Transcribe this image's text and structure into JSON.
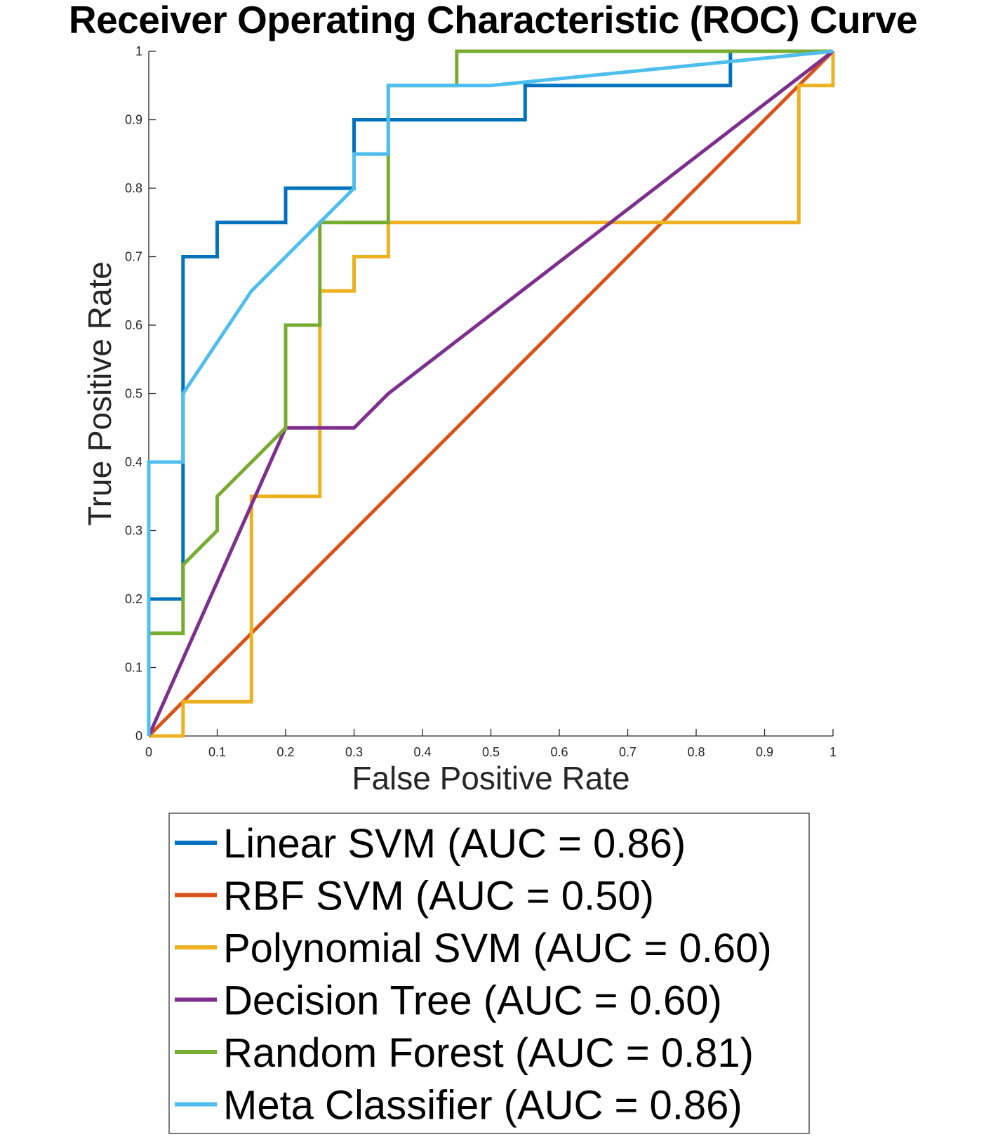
{
  "chart_data": {
    "type": "line",
    "title": "Receiver Operating Characteristic (ROC) Curve",
    "xlabel": "False Positive Rate",
    "ylabel": "True Positive Rate",
    "xlim": [
      0,
      1
    ],
    "ylim": [
      0,
      1
    ],
    "x_ticks": [
      "0",
      "0.1",
      "0.2",
      "0.3",
      "0.4",
      "0.5",
      "0.6",
      "0.7",
      "0.8",
      "0.9",
      "1"
    ],
    "y_ticks": [
      "0",
      "0.1",
      "0.2",
      "0.3",
      "0.4",
      "0.5",
      "0.6",
      "0.7",
      "0.8",
      "0.9",
      "1"
    ],
    "grid": false,
    "legend_position": "below",
    "series": [
      {
        "name": "Linear SVM (AUC = 0.86)",
        "color": "#0072BD",
        "points": [
          [
            0,
            0
          ],
          [
            0,
            0.2
          ],
          [
            0.05,
            0.2
          ],
          [
            0.05,
            0.7
          ],
          [
            0.1,
            0.7
          ],
          [
            0.1,
            0.75
          ],
          [
            0.2,
            0.75
          ],
          [
            0.2,
            0.8
          ],
          [
            0.3,
            0.8
          ],
          [
            0.3,
            0.9
          ],
          [
            0.55,
            0.9
          ],
          [
            0.55,
            0.95
          ],
          [
            0.85,
            0.95
          ],
          [
            0.85,
            1
          ],
          [
            1,
            1
          ]
        ]
      },
      {
        "name": "RBF SVM (AUC = 0.50)",
        "color": "#D95319",
        "points": [
          [
            0,
            0
          ],
          [
            1,
            1
          ]
        ]
      },
      {
        "name": "Polynomial SVM (AUC = 0.60)",
        "color": "#EDB120",
        "points": [
          [
            0,
            0
          ],
          [
            0.05,
            0
          ],
          [
            0.05,
            0.05
          ],
          [
            0.15,
            0.05
          ],
          [
            0.15,
            0.35
          ],
          [
            0.25,
            0.35
          ],
          [
            0.25,
            0.65
          ],
          [
            0.3,
            0.65
          ],
          [
            0.3,
            0.7
          ],
          [
            0.35,
            0.7
          ],
          [
            0.35,
            0.75
          ],
          [
            0.95,
            0.75
          ],
          [
            0.95,
            0.95
          ],
          [
            1,
            0.95
          ],
          [
            1,
            1
          ]
        ]
      },
      {
        "name": "Decision Tree (AUC = 0.60)",
        "color": "#7E2F8E",
        "points": [
          [
            0,
            0
          ],
          [
            0.2,
            0.45
          ],
          [
            0.3,
            0.45
          ],
          [
            0.35,
            0.5
          ],
          [
            1,
            1
          ]
        ]
      },
      {
        "name": "Random Forest (AUC = 0.81)",
        "color": "#77AC30",
        "points": [
          [
            0,
            0
          ],
          [
            0,
            0.15
          ],
          [
            0.05,
            0.15
          ],
          [
            0.05,
            0.25
          ],
          [
            0.1,
            0.3
          ],
          [
            0.1,
            0.35
          ],
          [
            0.2,
            0.45
          ],
          [
            0.2,
            0.6
          ],
          [
            0.25,
            0.6
          ],
          [
            0.25,
            0.75
          ],
          [
            0.35,
            0.75
          ],
          [
            0.35,
            0.95
          ],
          [
            0.45,
            0.95
          ],
          [
            0.45,
            1
          ],
          [
            1,
            1
          ]
        ]
      },
      {
        "name": "Meta Classifier (AUC = 0.86)",
        "color": "#4DBEEE",
        "points": [
          [
            0,
            0
          ],
          [
            0,
            0.4
          ],
          [
            0.05,
            0.4
          ],
          [
            0.05,
            0.5
          ],
          [
            0.15,
            0.65
          ],
          [
            0.25,
            0.75
          ],
          [
            0.3,
            0.8
          ],
          [
            0.3,
            0.85
          ],
          [
            0.35,
            0.85
          ],
          [
            0.35,
            0.95
          ],
          [
            0.5,
            0.95
          ],
          [
            1,
            1
          ]
        ]
      }
    ]
  }
}
